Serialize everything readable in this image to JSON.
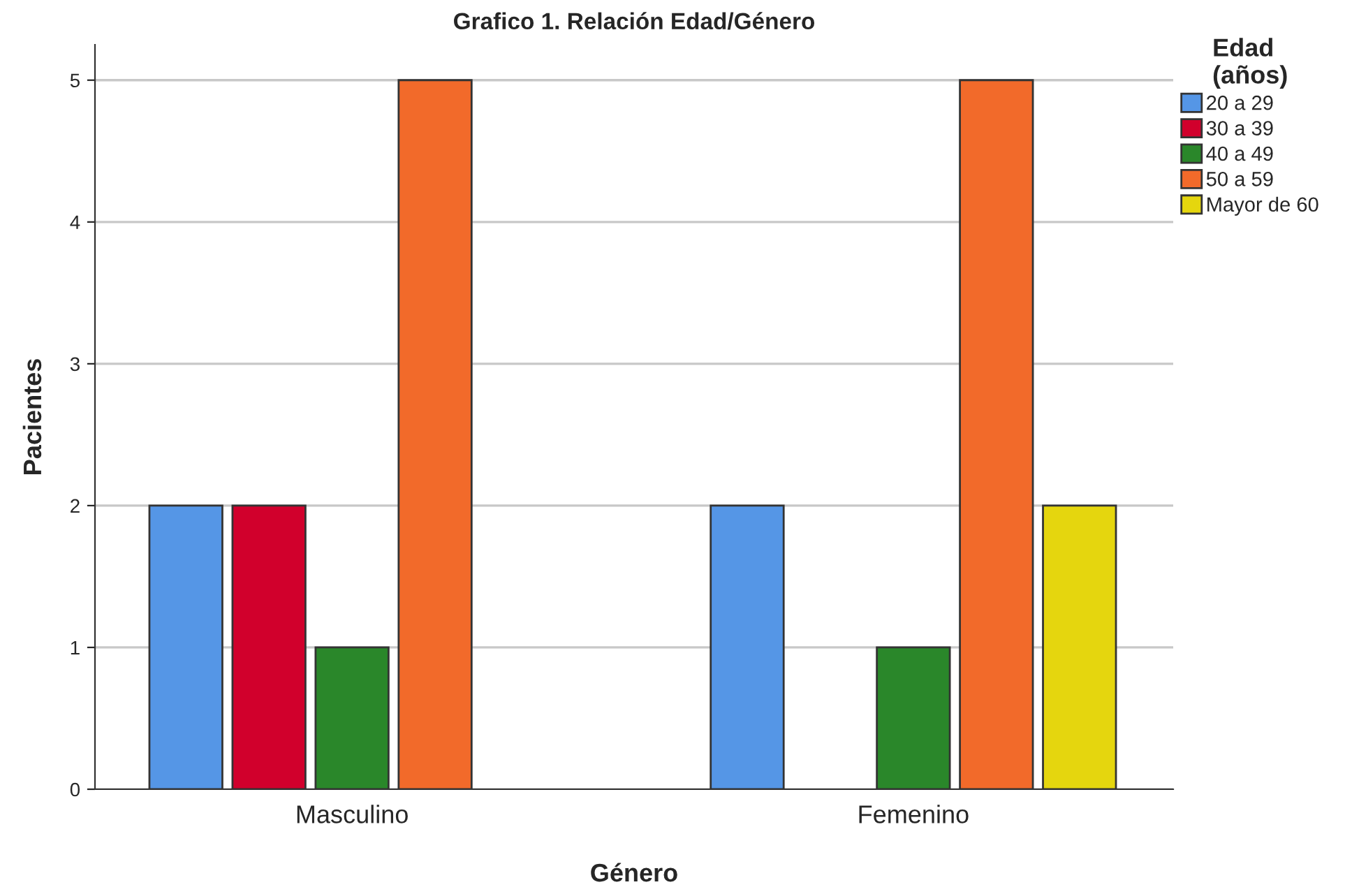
{
  "chart_data": {
    "type": "bar",
    "title": "Grafico 1. Relación Edad/Género",
    "xlabel": "Género",
    "ylabel": "Pacientes",
    "legend_title": "Edad\n(años)",
    "categories": [
      "Masculino",
      "Femenino"
    ],
    "series": [
      {
        "name": "20 a 29",
        "color": "#5596e6",
        "values": [
          2,
          2
        ]
      },
      {
        "name": "30 a 39",
        "color": "#d1002c",
        "values": [
          2,
          null
        ]
      },
      {
        "name": "40 a 49",
        "color": "#2a872a",
        "values": [
          1,
          1
        ]
      },
      {
        "name": "50 a 59",
        "color": "#f26a2a",
        "values": [
          5,
          5
        ]
      },
      {
        "name": "Mayor de 60",
        "color": "#e5d60e",
        "values": [
          null,
          2
        ]
      }
    ],
    "ylim": [
      0,
      5.25
    ],
    "yticks": [
      0,
      1,
      2,
      3,
      4,
      5
    ],
    "grid": "y",
    "legend": "right"
  }
}
